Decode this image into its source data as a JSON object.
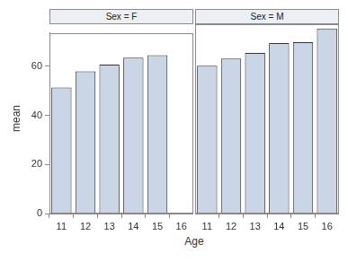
{
  "chart_data": {
    "type": "bar",
    "x_label": "Age",
    "y_label": "mean",
    "categories": [
      "11",
      "12",
      "13",
      "14",
      "15",
      "16"
    ],
    "panels": [
      {
        "title": "Sex = F",
        "values": [
          51.3,
          57.9,
          60.7,
          63.5,
          64.5,
          null
        ]
      },
      {
        "title": "Sex = M",
        "values": [
          57.5,
          60.3,
          62.4,
          66.3,
          66.6,
          71.9
        ]
      }
    ],
    "color": "#cad5e5",
    "ylim": [
      0,
      73.6
    ],
    "yticks": [
      0,
      20,
      40,
      60
    ],
    "grid": false
  }
}
